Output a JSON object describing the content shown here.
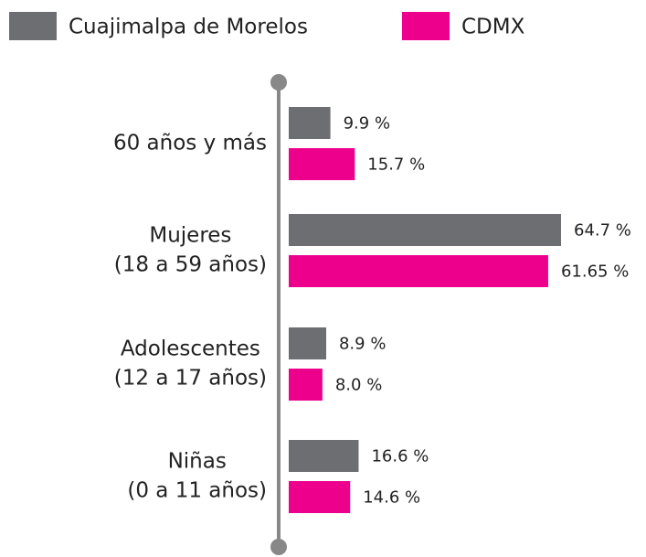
{
  "chart_data": {
    "type": "bar",
    "orientation": "horizontal",
    "categories": [
      [
        "60 años y más"
      ],
      [
        "Mujeres",
        "(18 a 59 años)"
      ],
      [
        "Adolescentes",
        "(12 a 17 años)"
      ],
      [
        "Niñas",
        "(0 a 11 años)"
      ]
    ],
    "series": [
      {
        "name": "Cuajimalpa de Morelos",
        "color": "#6d6e71",
        "values": [
          9.9,
          64.7,
          8.9,
          16.6
        ],
        "value_labels": [
          "9.9 %",
          "64.7 %",
          "8.9 %",
          "16.6 %"
        ]
      },
      {
        "name": "CDMX",
        "color": "#ec008c",
        "values": [
          15.7,
          61.65,
          8.0,
          14.6
        ],
        "value_labels": [
          "15.7 %",
          "61.65 %",
          "8.0 %",
          "14.6 %"
        ]
      }
    ]
  }
}
